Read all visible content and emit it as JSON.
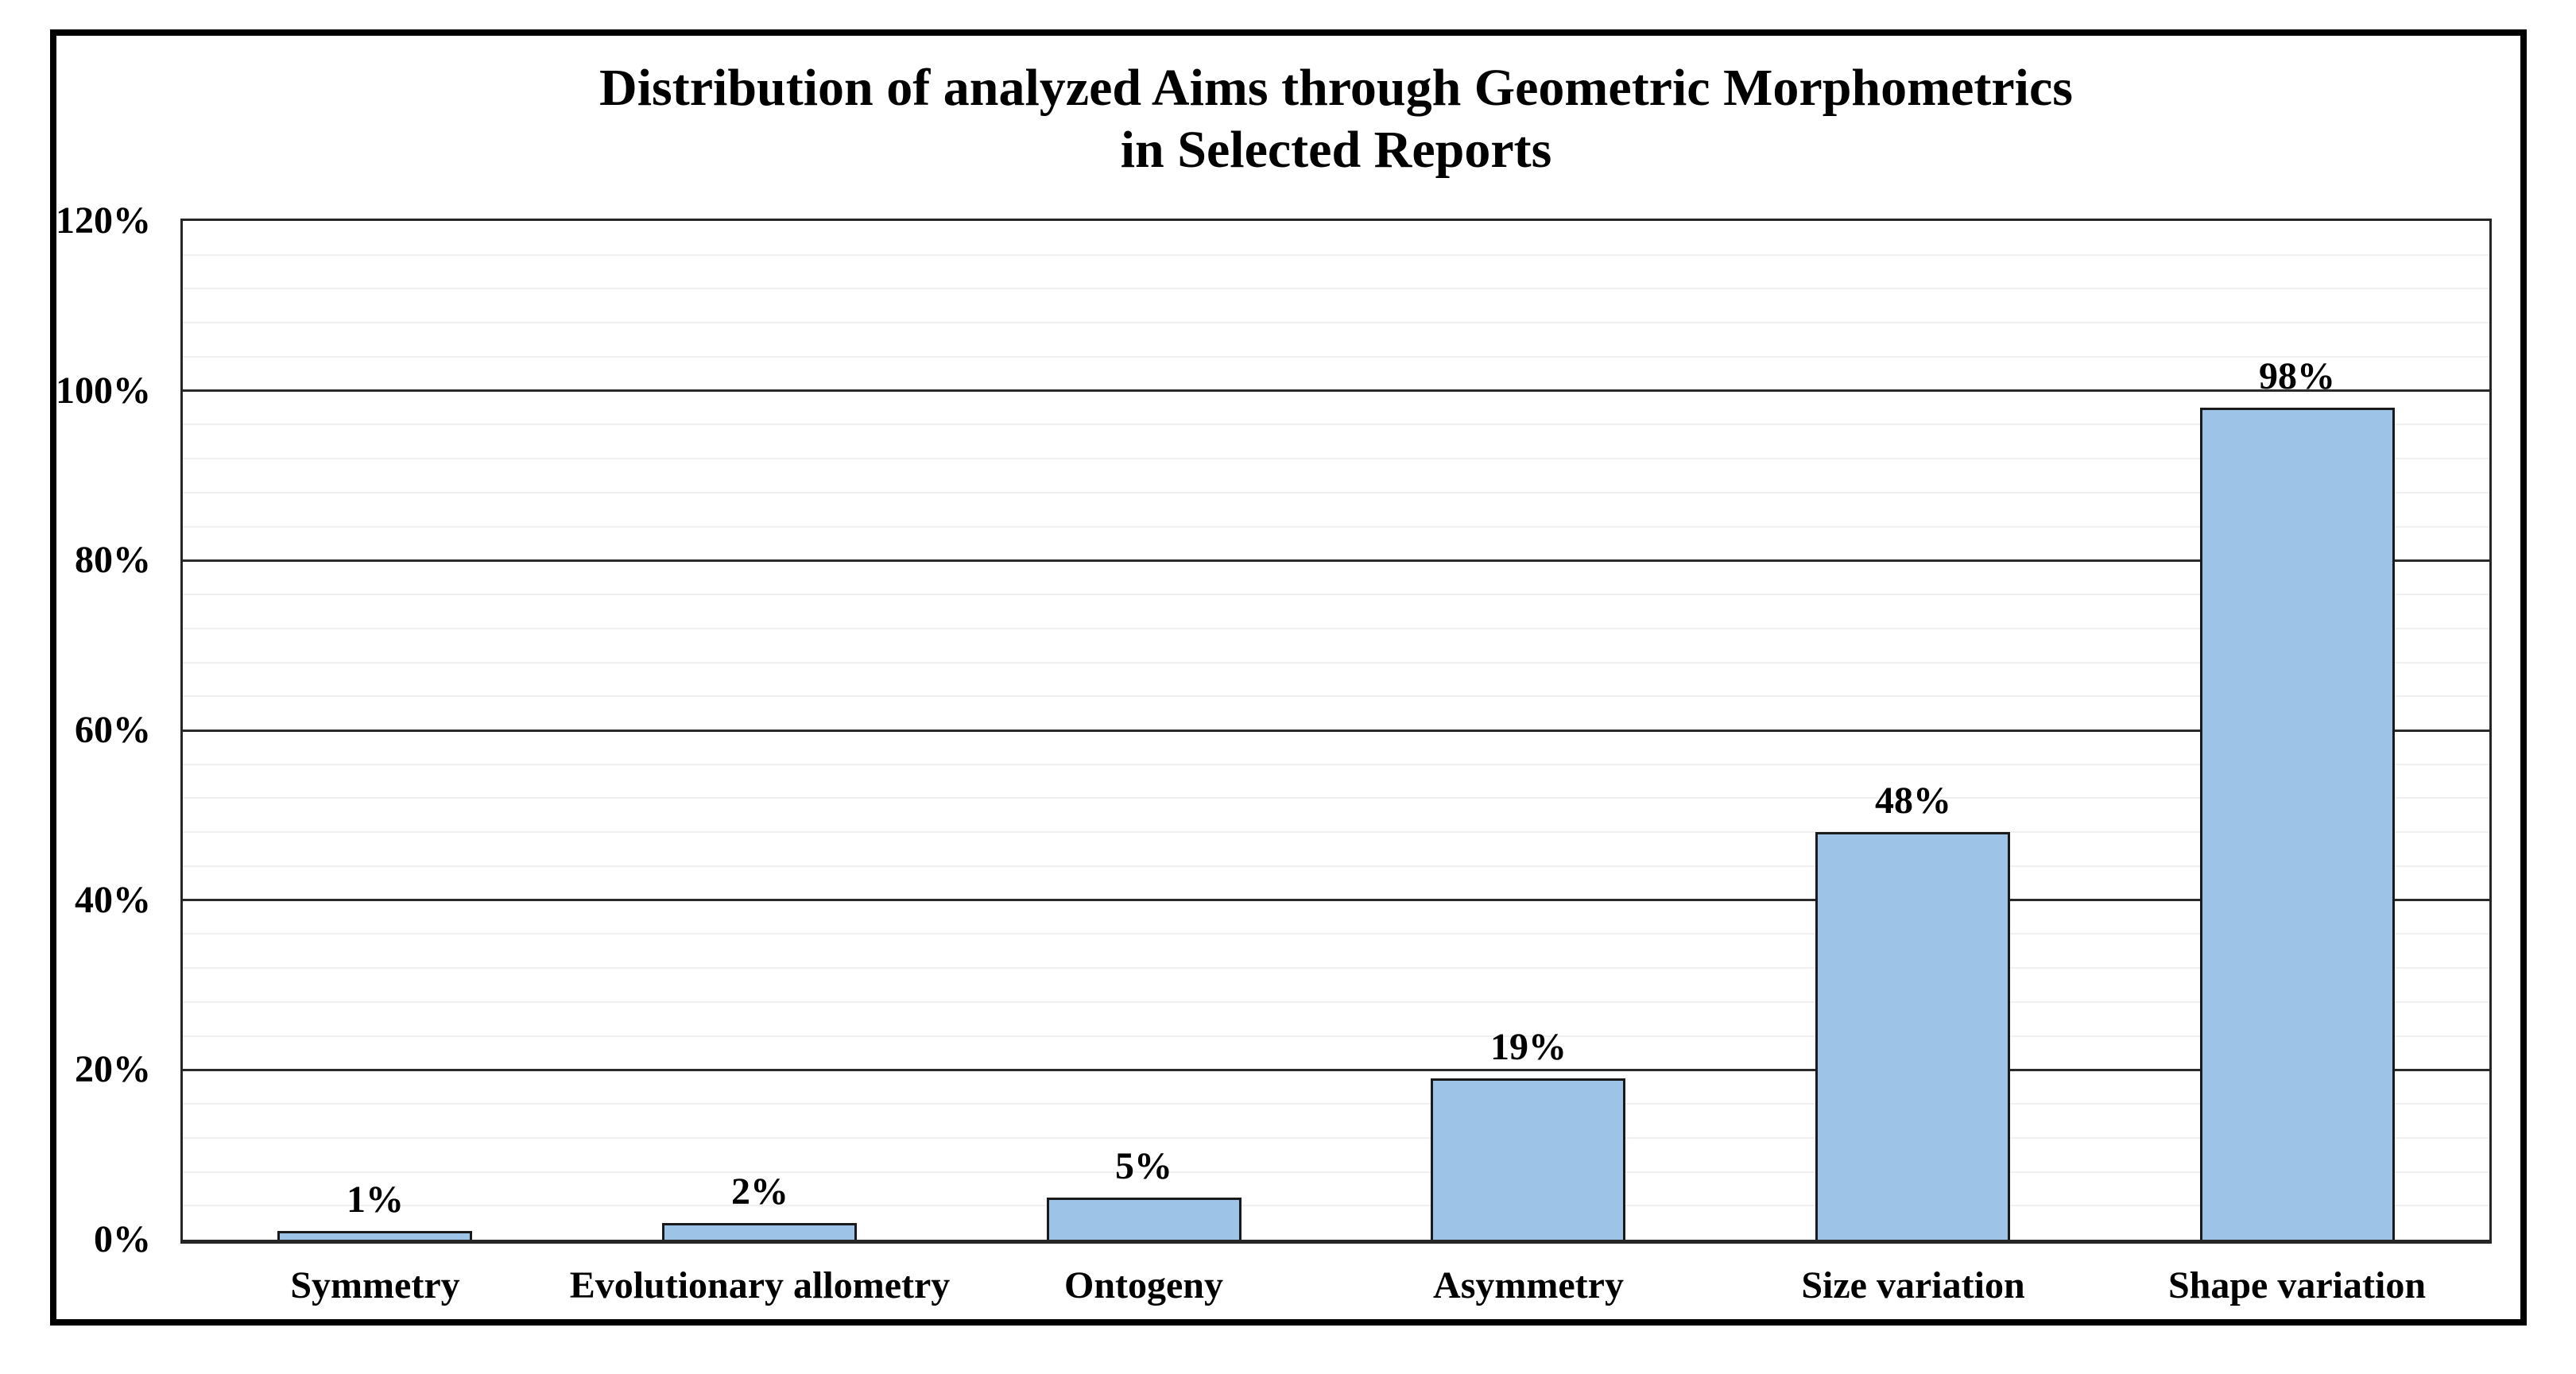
{
  "figure": {
    "background_color": "#FFFFFF",
    "frame_border_color": "#000000"
  },
  "chart_data": {
    "type": "bar",
    "title": "Distribution of analyzed Aims through Geometric Morphometrics in Selected Reports",
    "title_lines": [
      "Distribution of analyzed Aims through Geometric Morphometrics",
      "in Selected Reports"
    ],
    "categories": [
      "Symmetry",
      "Evolutionary allometry",
      "Ontogeny",
      "Asymmetry",
      "Size variation",
      "Shape variation"
    ],
    "values": [
      1,
      2,
      5,
      19,
      48,
      98
    ],
    "data_labels": [
      "1%",
      "2%",
      "5%",
      "19%",
      "48%",
      "98%"
    ],
    "xlabel": "",
    "ylabel": "",
    "ylim": [
      0,
      120
    ],
    "ytick_values": [
      0,
      20,
      40,
      60,
      80,
      100,
      120
    ],
    "ytick_labels": [
      "0%",
      "20%",
      "40%",
      "60%",
      "80%",
      "100%",
      "120%"
    ],
    "minor_gridline_step": 4,
    "grid": {
      "major": true,
      "minor": true
    },
    "legend": "none",
    "colors": {
      "bar_fill": "#9DC3E6",
      "bar_border": "#1A1A1A",
      "major_gridline": "#2B2B2B",
      "minor_gridline": "#F0F0F0",
      "axis_line": "#262626",
      "text": "#000000"
    }
  }
}
